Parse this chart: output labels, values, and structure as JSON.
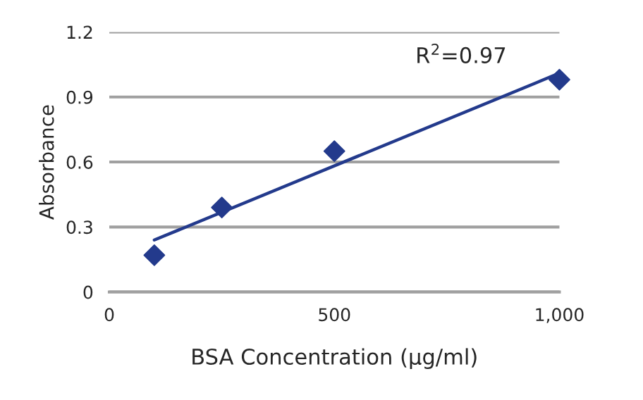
{
  "chart_data": {
    "type": "scatter",
    "xlabel": "BSA Concentration (μg/ml)",
    "ylabel": "Absorbance",
    "series": [
      {
        "color": "#233a8c",
        "marker": "diamond",
        "x": [
          100,
          250,
          500,
          1000
        ],
        "values": [
          0.17,
          0.39,
          0.65,
          0.98
        ]
      },
      {
        "type": "line",
        "color": "#233a8c",
        "marker": "none",
        "line_style": "solid",
        "x": [
          100,
          1000
        ],
        "values": [
          0.24,
          1.01
        ]
      }
    ],
    "annotations": [
      {
        "text": "R$^{2}$=0.97"
      }
    ],
    "xlim": [
      0,
      1000
    ],
    "xticks": [
      0,
      500,
      {
        "value": 1000,
        "label": "1,000"
      }
    ],
    "ylim": [
      0,
      1.2
    ],
    "yticks": [
      0,
      0.3,
      0.6,
      0.9,
      1.2
    ],
    "grid": "y",
    "legend": false
  }
}
